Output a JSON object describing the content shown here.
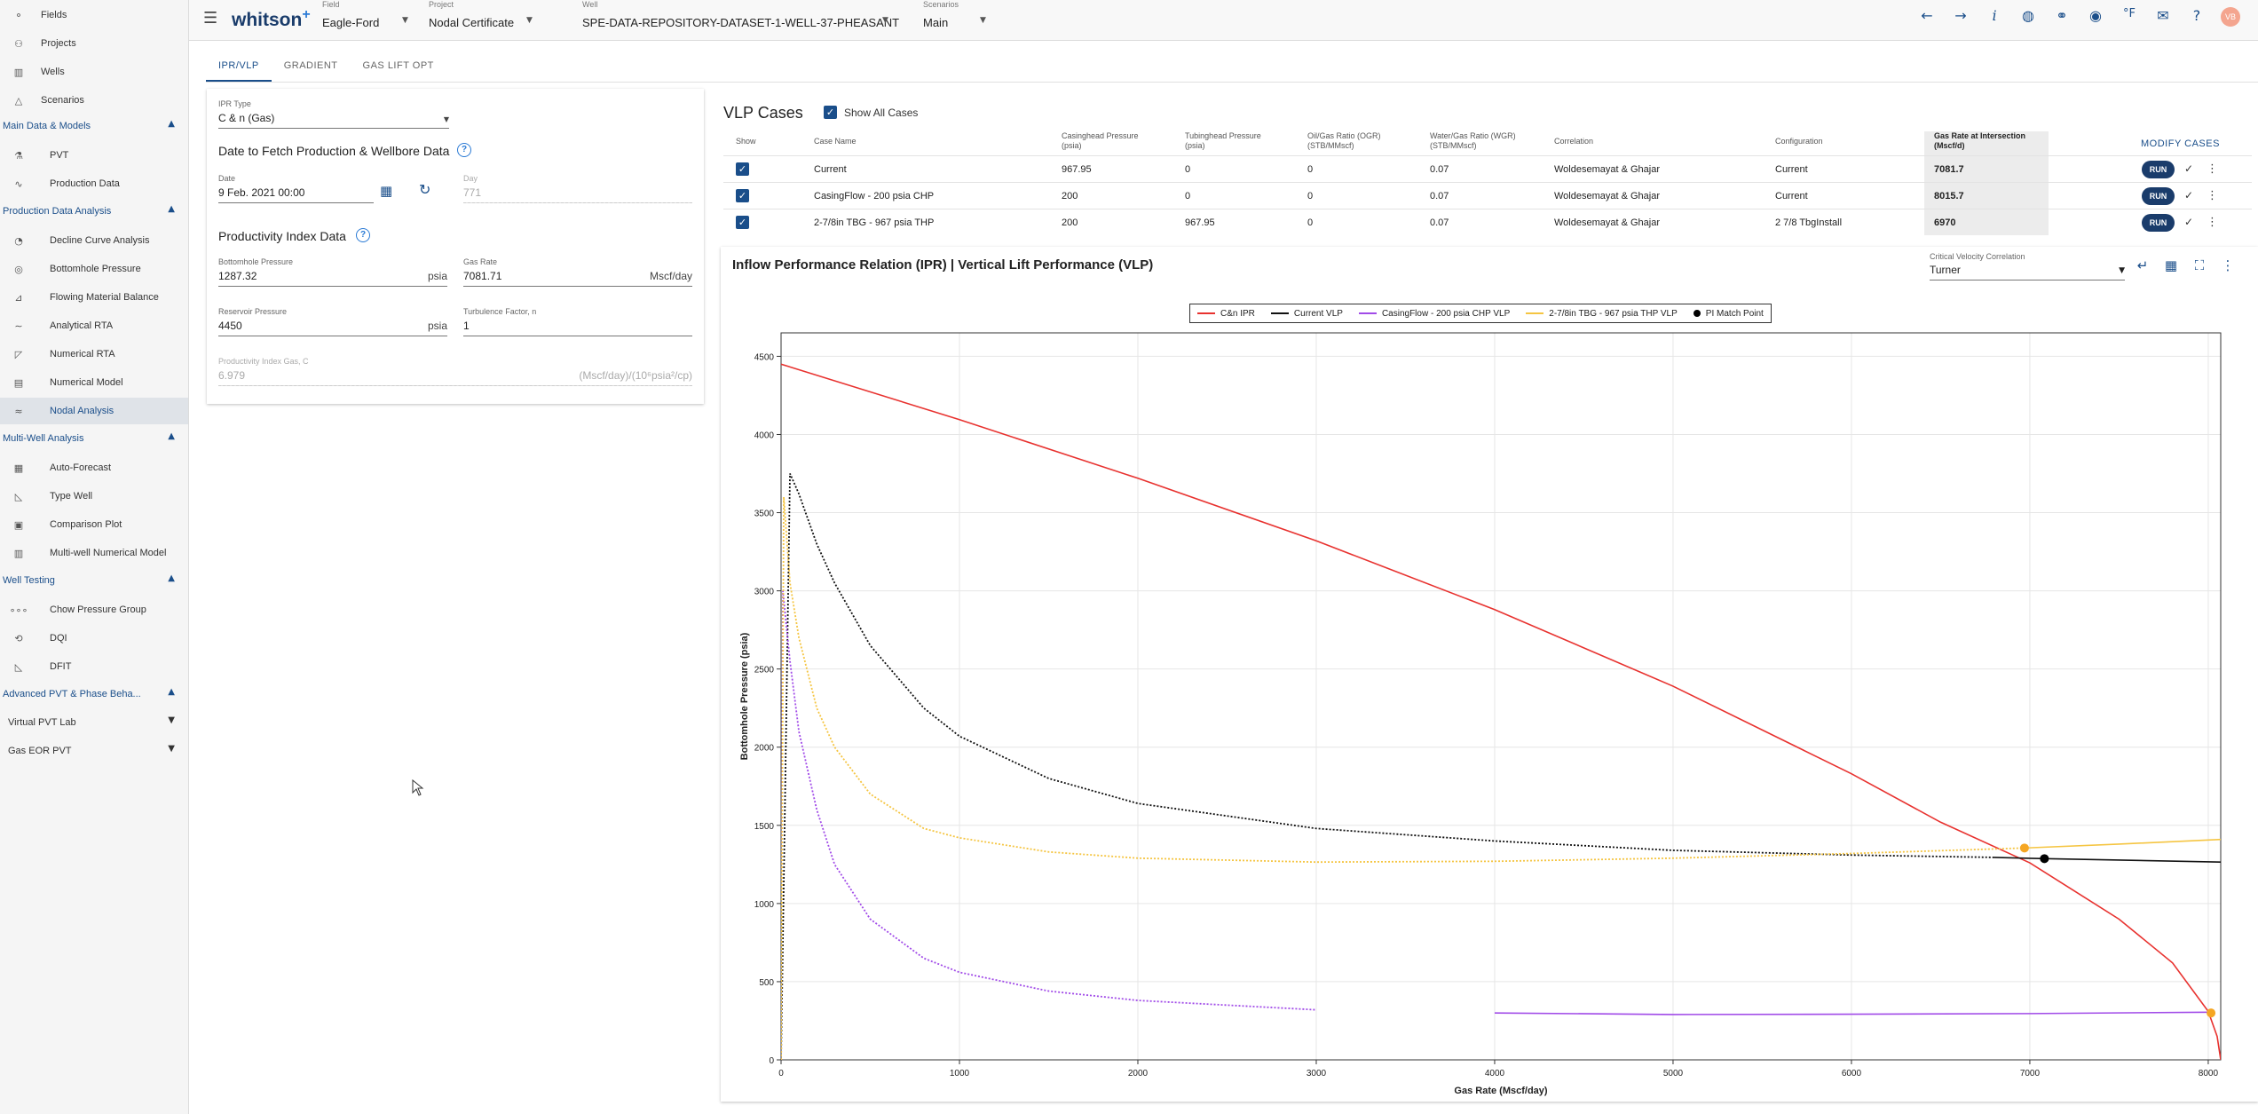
{
  "sidebar": {
    "top_items": [
      {
        "label": "Fields",
        "icon": "fields-icon"
      },
      {
        "label": "Projects",
        "icon": "projects-icon"
      },
      {
        "label": "Wells",
        "icon": "wells-icon"
      },
      {
        "label": "Scenarios",
        "icon": "scenarios-icon"
      }
    ],
    "sections": [
      {
        "title": "Main Data & Models",
        "items": [
          {
            "label": "PVT",
            "icon": "flask-icon"
          },
          {
            "label": "Production Data",
            "icon": "line-chart-icon"
          }
        ]
      },
      {
        "title": "Production Data Analysis",
        "items": [
          {
            "label": "Decline Curve Analysis",
            "icon": "dca-icon"
          },
          {
            "label": "Bottomhole Pressure",
            "icon": "gauge-icon"
          },
          {
            "label": "Flowing Material Balance",
            "icon": "fmb-icon"
          },
          {
            "label": "Analytical RTA",
            "icon": "rta-icon"
          },
          {
            "label": "Numerical RTA",
            "icon": "numerical-rta-icon"
          },
          {
            "label": "Numerical Model",
            "icon": "grid-model-icon"
          },
          {
            "label": "Nodal Analysis",
            "icon": "nodal-icon",
            "active": true
          }
        ]
      },
      {
        "title": "Multi-Well Analysis",
        "items": [
          {
            "label": "Auto-Forecast",
            "icon": "auto-forecast-icon"
          },
          {
            "label": "Type Well",
            "icon": "type-well-icon"
          },
          {
            "label": "Comparison Plot",
            "icon": "comparison-icon"
          },
          {
            "label": "Multi-well Numerical Model",
            "icon": "multiwell-icon"
          }
        ]
      },
      {
        "title": "Well Testing",
        "items": [
          {
            "label": "Chow Pressure Group",
            "icon": "chow-icon"
          },
          {
            "label": "DQI",
            "icon": "dqi-icon"
          },
          {
            "label": "DFIT",
            "icon": "dfit-icon"
          }
        ]
      },
      {
        "title": "Advanced PVT & Phase Beha...",
        "items": []
      }
    ],
    "subgroups": [
      {
        "label": "Virtual PVT Lab"
      },
      {
        "label": "Gas EOR PVT"
      }
    ]
  },
  "header": {
    "logo": "whitson",
    "logo_plus": "+",
    "field_label": "Field",
    "field_value": "Eagle-Ford",
    "project_label": "Project",
    "project_value": "Nodal Certificate",
    "well_label": "Well",
    "well_value": "SPE-DATA-REPOSITORY-DATASET-1-WELL-37-PHEASANT",
    "scenarios_label": "Scenarios",
    "scenarios_value": "Main",
    "avatar": "VB",
    "icons": [
      "arrow-left-icon",
      "arrow-right-icon",
      "info-icon",
      "globe-icon",
      "link-icon",
      "account-icon",
      "temperature-unit-icon",
      "feedback-icon",
      "help-icon"
    ]
  },
  "tabs": [
    {
      "label": "IPR/VLP",
      "active": true
    },
    {
      "label": "GRADIENT"
    },
    {
      "label": "GAS LIFT OPT"
    }
  ],
  "ipr": {
    "ipr_type_label": "IPR Type",
    "ipr_type_value": "C & n (Gas)",
    "date_section": "Date to Fetch Production & Wellbore Data",
    "date_label": "Date",
    "date_value": "9 Feb. 2021 00:00",
    "day_label": "Day",
    "day_value": "771",
    "pi_section": "Productivity Index Data",
    "bhp_label": "Bottomhole Pressure",
    "bhp_value": "1287.32",
    "bhp_unit": "psia",
    "gas_rate_label": "Gas Rate",
    "gas_rate_value": "7081.71",
    "gas_rate_unit": "Mscf/day",
    "res_p_label": "Reservoir Pressure",
    "res_p_value": "4450",
    "res_p_unit": "psia",
    "turb_label": "Turbulence Factor, n",
    "turb_value": "1",
    "pi_gas_label": "Productivity Index Gas, C",
    "pi_gas_value": "6.979",
    "pi_gas_unit": "(Mscf/day)/(10⁶psia²/cp)"
  },
  "vlp": {
    "title": "VLP Cases",
    "show_all": "Show All Cases",
    "modify": "MODIFY CASES",
    "headers": {
      "show": "Show",
      "case_name": "Case Name",
      "chp": "Casinghead Pressure (psia)",
      "thp": "Tubinghead Pressure (psia)",
      "ogr": "Oil/Gas Ratio (OGR) (STB/MMscf)",
      "wgr": "Water/Gas Ratio (WGR) (STB/MMscf)",
      "correlation": "Correlation",
      "configuration": "Configuration",
      "gas_rate": "Gas Rate at Intersection (Mscf/d)"
    },
    "run_label": "RUN",
    "rows": [
      {
        "name": "Current",
        "chp": "967.95",
        "thp": "0",
        "ogr": "0",
        "wgr": "0.07",
        "correlation": "Woldesemayat & Ghajar",
        "configuration": "Current",
        "gas_rate": "7081.7"
      },
      {
        "name": "CasingFlow - 200 psia CHP",
        "chp": "200",
        "thp": "0",
        "ogr": "0",
        "wgr": "0.07",
        "correlation": "Woldesemayat & Ghajar",
        "configuration": "Current",
        "gas_rate": "8015.7"
      },
      {
        "name": "2-7/8in TBG - 967 psia THP",
        "chp": "200",
        "thp": "967.95",
        "ogr": "0",
        "wgr": "0.07",
        "correlation": "Woldesemayat & Ghajar",
        "configuration": "2 7/8 TbgInstall",
        "gas_rate": "6970"
      }
    ]
  },
  "chart_panel": {
    "title": "Inflow Performance Relation (IPR) | Vertical Lift Performance (VLP)",
    "cvc_label": "Critical Velocity Correlation",
    "cvc_value": "Turner"
  },
  "chart_data": {
    "type": "line",
    "xlabel": "Gas Rate (Mscf/day)",
    "ylabel": "Bottomhole Pressure (psia)",
    "xlim": [
      0,
      8070
    ],
    "ylim": [
      0,
      4650
    ],
    "xticks": [
      0,
      1000,
      2000,
      3000,
      4000,
      5000,
      6000,
      7000,
      8000
    ],
    "yticks": [
      0,
      500,
      1000,
      1500,
      2000,
      2500,
      3000,
      3500,
      4000,
      4500
    ],
    "grid": true,
    "legend_position": "top-center",
    "series": [
      {
        "name": "C&n IPR",
        "color": "#e8322f",
        "style": "solid",
        "x": [
          0,
          1000,
          2000,
          3000,
          4000,
          5000,
          6000,
          6500,
          7000,
          7500,
          7800,
          8000,
          8050,
          8070
        ],
        "y": [
          4450,
          4095,
          3720,
          3320,
          2880,
          2390,
          1830,
          1520,
          1260,
          900,
          620,
          310,
          150,
          0
        ]
      },
      {
        "name": "Current VLP",
        "color": "#111111",
        "style": "dotted-then-solid",
        "solid_from": 6800,
        "x": [
          0,
          50,
          100,
          200,
          300,
          500,
          800,
          1000,
          1500,
          2000,
          3000,
          4000,
          5000,
          6000,
          6800,
          7081.7,
          8070
        ],
        "y": [
          0,
          3750,
          3620,
          3300,
          3050,
          2650,
          2250,
          2070,
          1800,
          1640,
          1480,
          1400,
          1340,
          1310,
          1295,
          1287,
          1265
        ]
      },
      {
        "name": "CasingFlow - 200 psia CHP VLP",
        "color": "#a14be8",
        "style": "dotted-then-solid",
        "solid_from": 3250,
        "x": [
          0,
          10,
          50,
          100,
          200,
          300,
          500,
          800,
          1000,
          1500,
          2000,
          3000,
          4000,
          5000,
          6000,
          7000,
          8015.7
        ],
        "y": [
          0,
          3000,
          2550,
          2100,
          1600,
          1250,
          900,
          650,
          560,
          440,
          380,
          320,
          300,
          290,
          292,
          296,
          305
        ]
      },
      {
        "name": "2-7/8in TBG - 967 psia THP VLP",
        "color": "#f5c542",
        "style": "dotted-then-solid",
        "solid_from": 6970,
        "x": [
          0,
          15,
          50,
          100,
          200,
          300,
          500,
          800,
          1000,
          1500,
          2000,
          3000,
          4000,
          5000,
          6000,
          6970,
          7500,
          8070
        ],
        "y": [
          0,
          3600,
          3050,
          2700,
          2250,
          2000,
          1700,
          1480,
          1420,
          1330,
          1290,
          1265,
          1270,
          1290,
          1320,
          1355,
          1380,
          1410
        ]
      }
    ],
    "points": [
      {
        "name": "PI Match Point",
        "color": "#000000",
        "x": 7081.7,
        "y": 1287
      },
      {
        "name": "intersection",
        "color": "#f5a623",
        "x": 6970,
        "y": 1355
      },
      {
        "name": "intersection",
        "color": "#f5a623",
        "x": 8015.7,
        "y": 300
      }
    ]
  }
}
